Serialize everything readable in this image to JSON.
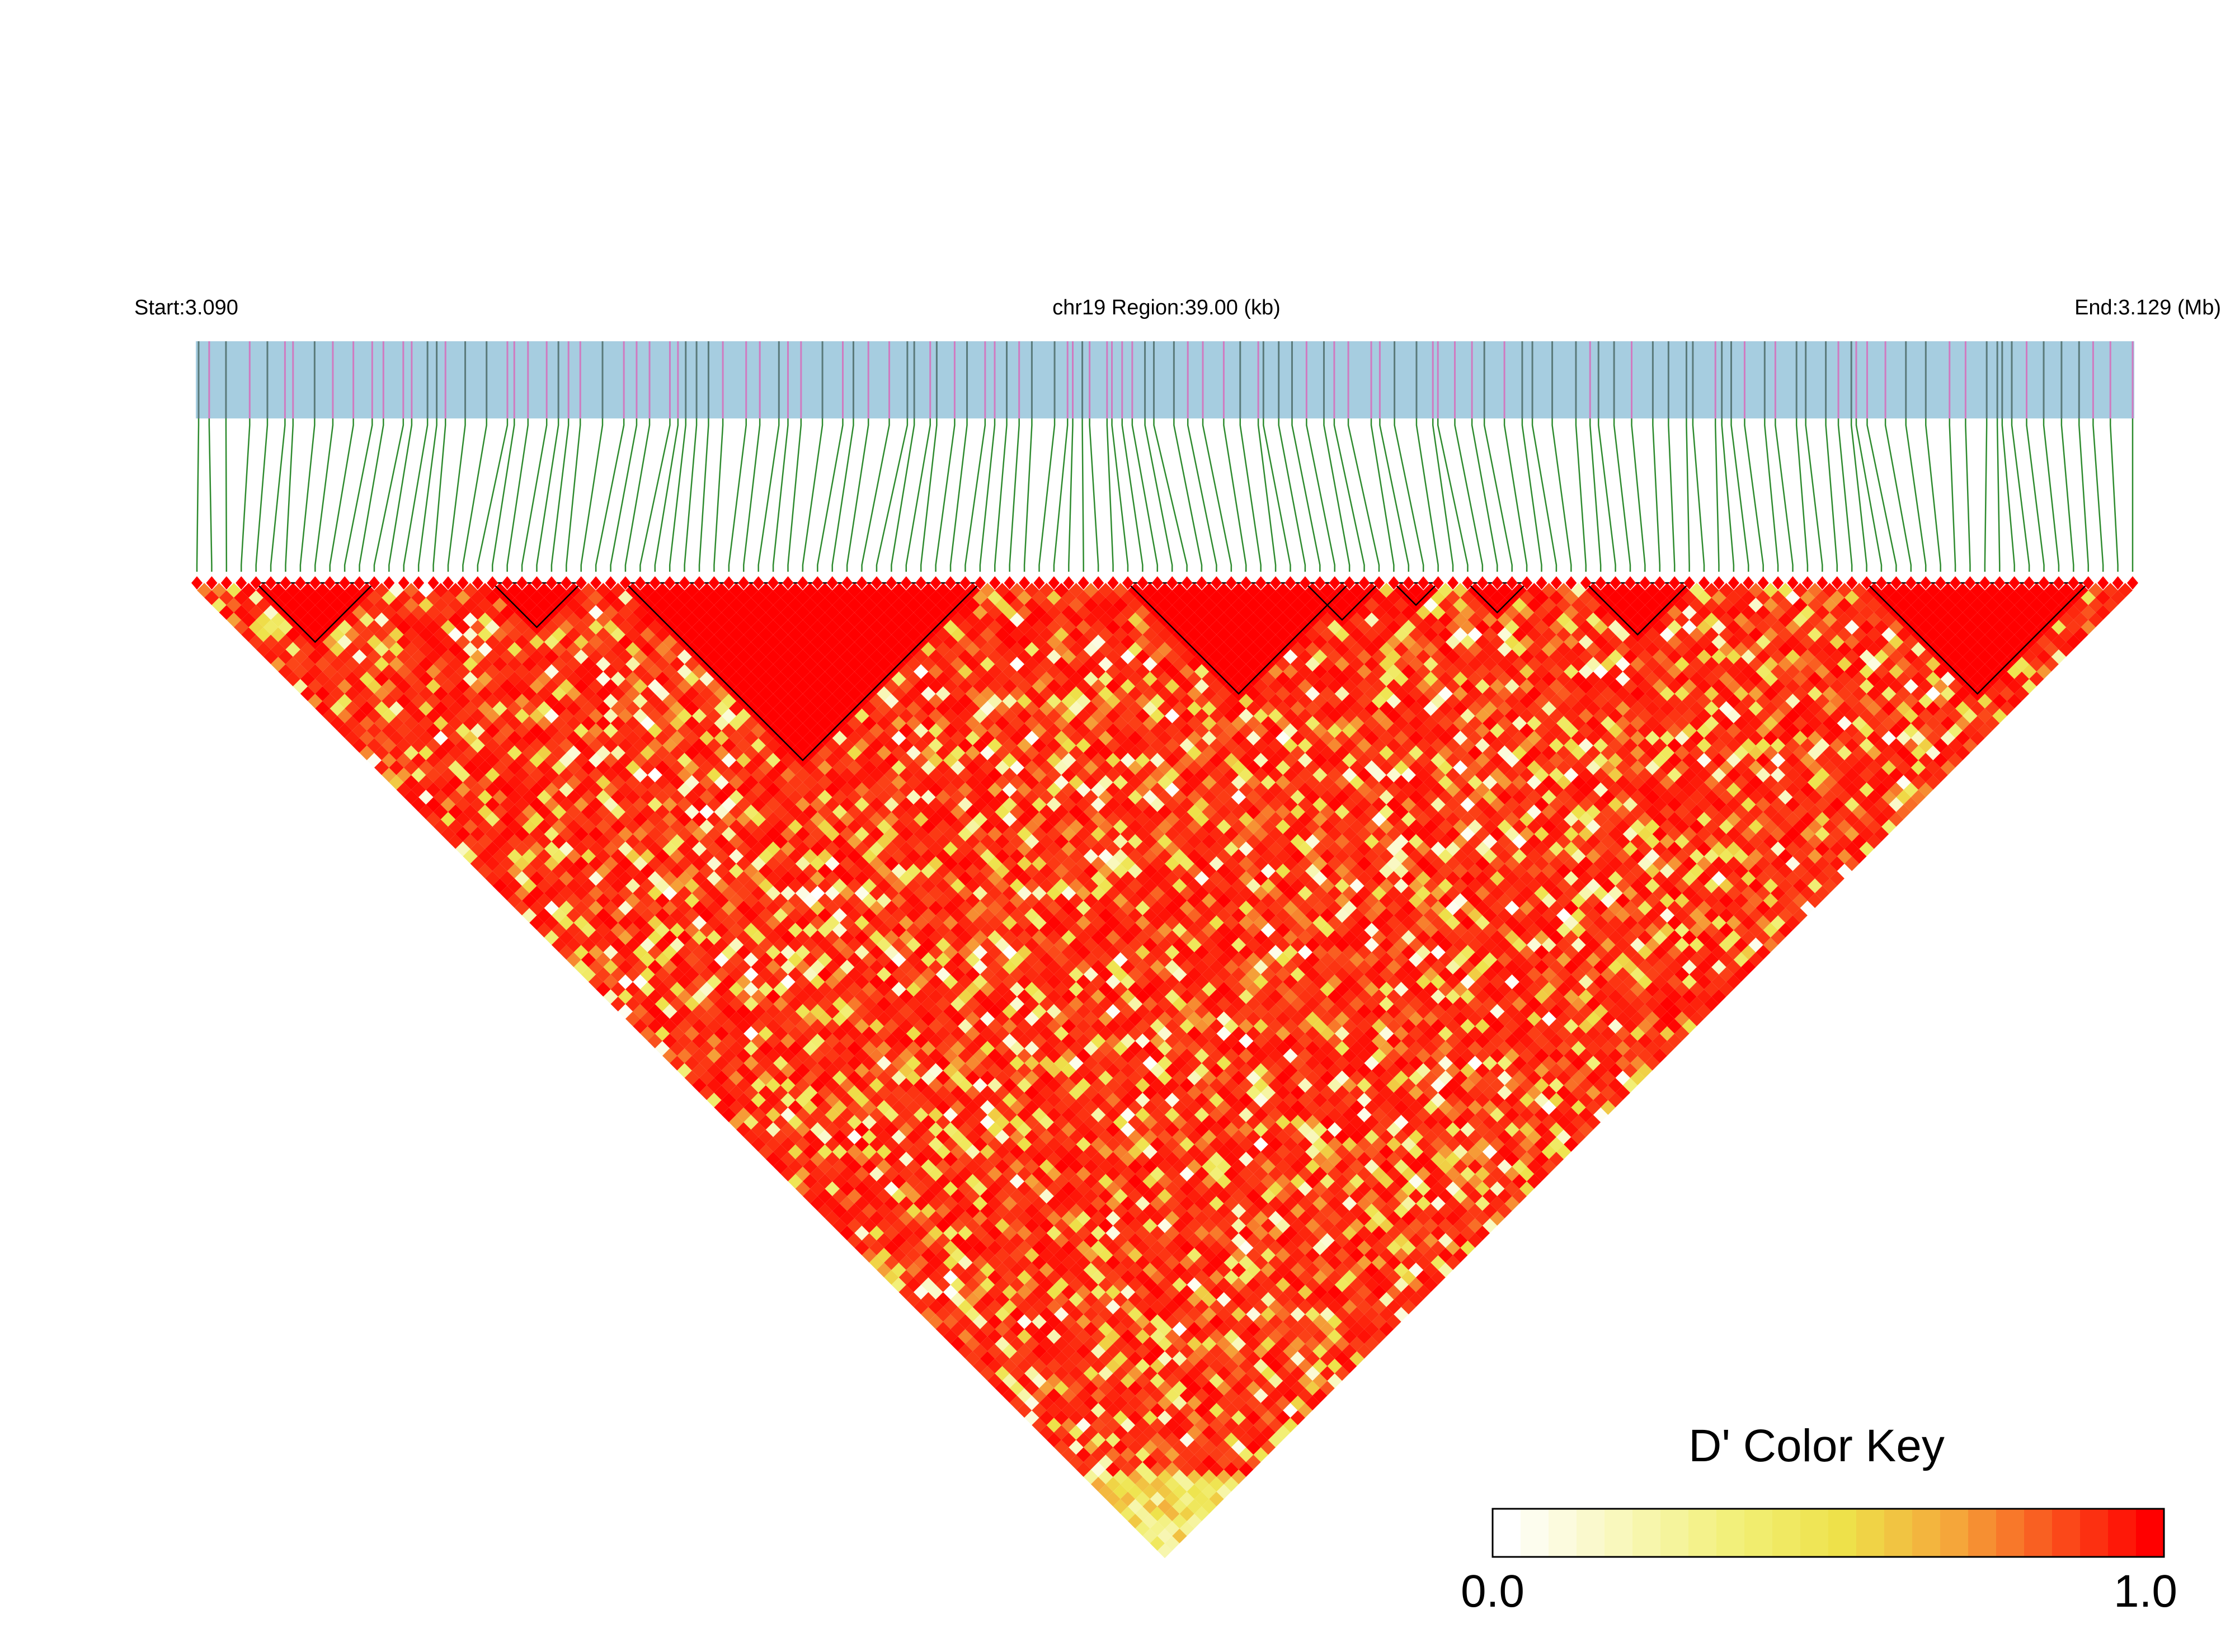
{
  "chart_data": {
    "type": "heatmap",
    "subtype": "linkage-disequilibrium-triangle",
    "header": {
      "start_label": "Start:3.090",
      "region_label": "chr19 Region:39.00 (kb)",
      "end_label": "End:3.129 (Mb)"
    },
    "color_key": {
      "title": "D' Color Key",
      "min_label": "0.0",
      "max_label": "1.0",
      "min": 0.0,
      "max": 1.0,
      "colors": [
        "#ffffff",
        "#f2f07a",
        "#eee24a",
        "#f5a53a",
        "#ff0000"
      ]
    },
    "num_snps": 132,
    "ld_blocks_snp_ranges": [
      [
        4,
        12
      ],
      [
        20,
        26
      ],
      [
        29,
        53
      ],
      [
        63,
        78
      ],
      [
        75,
        80
      ],
      [
        81,
        84
      ],
      [
        86,
        90
      ],
      [
        94,
        101
      ],
      [
        113,
        128
      ]
    ],
    "colors": {
      "track_fill": "#a6cde0",
      "track_line_dark": "#5a7a7a",
      "track_line_pink": "#d07ac0",
      "connector_line": "#2e8b2e",
      "block_outline": "#000000",
      "snp_marker": "#ff0000"
    }
  }
}
